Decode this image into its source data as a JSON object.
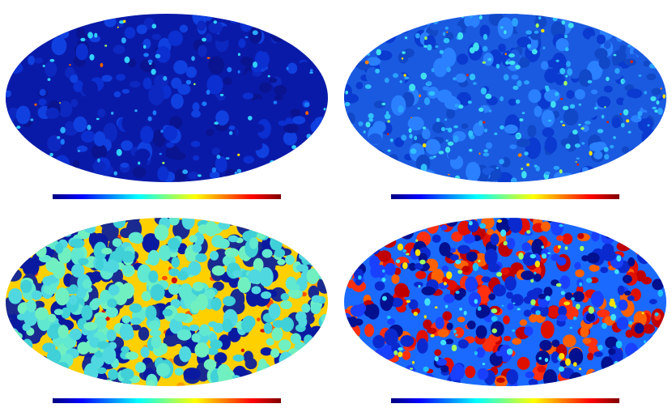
{
  "maps": [
    {
      "title": "",
      "min_label": "",
      "max_label": "",
      "style": "sparse-dark"
    },
    {
      "title": "",
      "min_label": "",
      "max_label": "",
      "style": "medium-blue"
    },
    {
      "title": "",
      "min_label": "",
      "max_label": "",
      "style": "cyan-cells"
    },
    {
      "title": "",
      "min_label": "",
      "max_label": "",
      "style": "red-blue-blobs"
    }
  ],
  "colors": {
    "colormap": [
      "#00007f",
      "#0000ff",
      "#007fff",
      "#00ffff",
      "#7fff7f",
      "#ffff00",
      "#ff7f00",
      "#ff0000",
      "#7f0000"
    ]
  }
}
